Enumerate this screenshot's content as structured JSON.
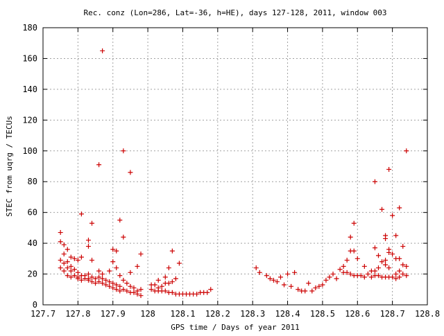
{
  "chart_data": {
    "type": "scatter",
    "title": "Rec. conz (Lon=286, Lat=-36, h=HE), days 127-128, 2011, window 003",
    "xlabel": "GPS time / Days of year 2011",
    "ylabel": "STEC from uqrg / TECUs",
    "xlim": [
      127.7,
      128.8
    ],
    "ylim": [
      0,
      180
    ],
    "x_ticks": [
      "127.7",
      "127.8",
      "127.9",
      "128",
      "128.1",
      "128.2",
      "128.3",
      "128.4",
      "128.5",
      "128.6",
      "128.7",
      "128.8"
    ],
    "y_ticks": [
      "0",
      "20",
      "40",
      "60",
      "80",
      "100",
      "120",
      "140",
      "160",
      "180"
    ],
    "grid": true,
    "legend": "none",
    "marker": "+",
    "marker_color": "#cc0000",
    "series": [
      {
        "points": [
          [
            127.75,
            47
          ],
          [
            127.75,
            41
          ],
          [
            127.75,
            29
          ],
          [
            127.75,
            24
          ],
          [
            127.76,
            39
          ],
          [
            127.76,
            33
          ],
          [
            127.76,
            27
          ],
          [
            127.76,
            22
          ],
          [
            127.77,
            36
          ],
          [
            127.77,
            28
          ],
          [
            127.77,
            24
          ],
          [
            127.77,
            19
          ],
          [
            127.78,
            31
          ],
          [
            127.78,
            25
          ],
          [
            127.78,
            22
          ],
          [
            127.78,
            18
          ],
          [
            127.79,
            30
          ],
          [
            127.79,
            23
          ],
          [
            127.79,
            19
          ],
          [
            127.8,
            29
          ],
          [
            127.8,
            21
          ],
          [
            127.8,
            18
          ],
          [
            127.8,
            17
          ],
          [
            127.81,
            59
          ],
          [
            127.81,
            31
          ],
          [
            127.81,
            19
          ],
          [
            127.81,
            16
          ],
          [
            127.82,
            19
          ],
          [
            127.82,
            17
          ],
          [
            127.83,
            42
          ],
          [
            127.83,
            38
          ],
          [
            127.83,
            20
          ],
          [
            127.83,
            17
          ],
          [
            127.83,
            16
          ],
          [
            127.84,
            53
          ],
          [
            127.84,
            29
          ],
          [
            127.84,
            18
          ],
          [
            127.84,
            15
          ],
          [
            127.85,
            17
          ],
          [
            127.85,
            14
          ],
          [
            127.86,
            91
          ],
          [
            127.86,
            22
          ],
          [
            127.86,
            18
          ],
          [
            127.86,
            15
          ],
          [
            127.87,
            165
          ],
          [
            127.87,
            20
          ],
          [
            127.87,
            17
          ],
          [
            127.87,
            14
          ],
          [
            127.88,
            16
          ],
          [
            127.88,
            13
          ],
          [
            127.89,
            22
          ],
          [
            127.89,
            15
          ],
          [
            127.89,
            12
          ],
          [
            127.9,
            36
          ],
          [
            127.9,
            28
          ],
          [
            127.9,
            14
          ],
          [
            127.9,
            11
          ],
          [
            127.91,
            35
          ],
          [
            127.91,
            24
          ],
          [
            127.91,
            13
          ],
          [
            127.91,
            10
          ],
          [
            127.92,
            55
          ],
          [
            127.92,
            19
          ],
          [
            127.92,
            12
          ],
          [
            127.92,
            9
          ],
          [
            127.93,
            100
          ],
          [
            127.93,
            44
          ],
          [
            127.93,
            16
          ],
          [
            127.93,
            10
          ],
          [
            127.94,
            14
          ],
          [
            127.94,
            9
          ],
          [
            127.95,
            86
          ],
          [
            127.95,
            21
          ],
          [
            127.95,
            12
          ],
          [
            127.95,
            8
          ],
          [
            127.96,
            11
          ],
          [
            127.96,
            8
          ],
          [
            127.97,
            25
          ],
          [
            127.97,
            9
          ],
          [
            127.97,
            7
          ],
          [
            127.98,
            33
          ],
          [
            127.98,
            10
          ],
          [
            127.98,
            6
          ],
          [
            128.01,
            13
          ],
          [
            128.01,
            10
          ],
          [
            128.02,
            13
          ],
          [
            128.02,
            9
          ],
          [
            128.03,
            16
          ],
          [
            128.03,
            11
          ],
          [
            128.03,
            9
          ],
          [
            128.04,
            12
          ],
          [
            128.04,
            9
          ],
          [
            128.05,
            18
          ],
          [
            128.05,
            14
          ],
          [
            128.05,
            9
          ],
          [
            128.06,
            24
          ],
          [
            128.06,
            14
          ],
          [
            128.06,
            8
          ],
          [
            128.07,
            35
          ],
          [
            128.07,
            15
          ],
          [
            128.07,
            8
          ],
          [
            128.08,
            17
          ],
          [
            128.08,
            7
          ],
          [
            128.09,
            27
          ],
          [
            128.09,
            7
          ],
          [
            128.1,
            7
          ],
          [
            128.11,
            7
          ],
          [
            128.12,
            7
          ],
          [
            128.13,
            7
          ],
          [
            128.14,
            7
          ],
          [
            128.15,
            8
          ],
          [
            128.16,
            8
          ],
          [
            128.17,
            8
          ],
          [
            128.18,
            10
          ],
          [
            128.31,
            24
          ],
          [
            128.32,
            21
          ],
          [
            128.34,
            19
          ],
          [
            128.35,
            17
          ],
          [
            128.36,
            16
          ],
          [
            128.37,
            15
          ],
          [
            128.38,
            18
          ],
          [
            128.39,
            13
          ],
          [
            128.4,
            20
          ],
          [
            128.41,
            12
          ],
          [
            128.42,
            21
          ],
          [
            128.43,
            10
          ],
          [
            128.44,
            9
          ],
          [
            128.45,
            9
          ],
          [
            128.46,
            14
          ],
          [
            128.47,
            9
          ],
          [
            128.48,
            11
          ],
          [
            128.49,
            12
          ],
          [
            128.5,
            13
          ],
          [
            128.51,
            16
          ],
          [
            128.52,
            18
          ],
          [
            128.53,
            20
          ],
          [
            128.54,
            17
          ],
          [
            128.55,
            23
          ],
          [
            128.56,
            25
          ],
          [
            128.56,
            21
          ],
          [
            128.57,
            29
          ],
          [
            128.57,
            21
          ],
          [
            128.58,
            44
          ],
          [
            128.58,
            35
          ],
          [
            128.58,
            20
          ],
          [
            128.59,
            53
          ],
          [
            128.59,
            35
          ],
          [
            128.59,
            19
          ],
          [
            128.6,
            30
          ],
          [
            128.6,
            19
          ],
          [
            128.61,
            19
          ],
          [
            128.62,
            25
          ],
          [
            128.62,
            18
          ],
          [
            128.63,
            20
          ],
          [
            128.64,
            22
          ],
          [
            128.64,
            18
          ],
          [
            128.65,
            80
          ],
          [
            128.65,
            37
          ],
          [
            128.65,
            22
          ],
          [
            128.65,
            19
          ],
          [
            128.66,
            32
          ],
          [
            128.66,
            24
          ],
          [
            128.66,
            19
          ],
          [
            128.67,
            62
          ],
          [
            128.67,
            28
          ],
          [
            128.67,
            18
          ],
          [
            128.68,
            45
          ],
          [
            128.68,
            43
          ],
          [
            128.68,
            29
          ],
          [
            128.68,
            26
          ],
          [
            128.68,
            18
          ],
          [
            128.69,
            88
          ],
          [
            128.69,
            36
          ],
          [
            128.69,
            34
          ],
          [
            128.69,
            24
          ],
          [
            128.69,
            18
          ],
          [
            128.7,
            58
          ],
          [
            128.7,
            33
          ],
          [
            128.7,
            18
          ],
          [
            128.71,
            45
          ],
          [
            128.71,
            30
          ],
          [
            128.71,
            20
          ],
          [
            128.71,
            17
          ],
          [
            128.72,
            63
          ],
          [
            128.72,
            30
          ],
          [
            128.72,
            22
          ],
          [
            128.72,
            18
          ],
          [
            128.73,
            38
          ],
          [
            128.73,
            26
          ],
          [
            128.73,
            20
          ],
          [
            128.74,
            100
          ],
          [
            128.74,
            25
          ],
          [
            128.74,
            19
          ]
        ]
      }
    ]
  }
}
